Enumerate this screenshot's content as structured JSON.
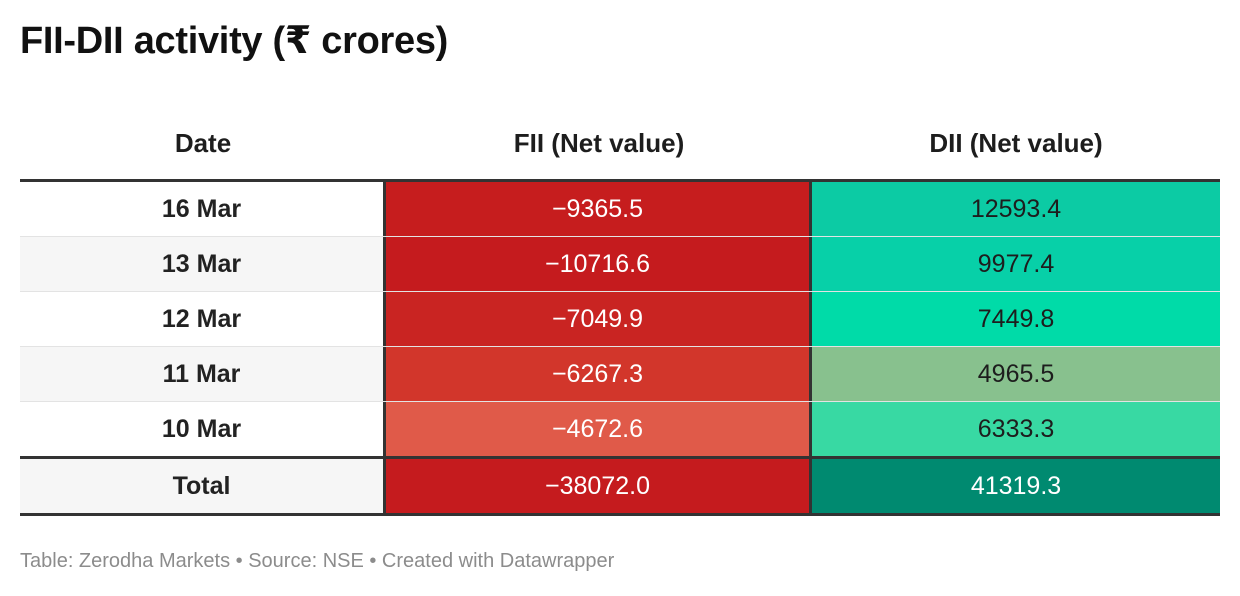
{
  "title": "FII-DII activity (₹ crores)",
  "chart_data": {
    "type": "table",
    "columns": [
      "Date",
      "FII (Net value)",
      "DII (Net value)"
    ],
    "rows": [
      {
        "date": "16 Mar",
        "fii": "−9365.5",
        "dii": "12593.4",
        "fii_color": "#c61d1e",
        "dii_color": "#0ccba4"
      },
      {
        "date": "13 Mar",
        "fii": "−10716.6",
        "dii": "9977.4",
        "fii_color": "#c51b1e",
        "dii_color": "#07d0a8"
      },
      {
        "date": "12 Mar",
        "fii": "−7049.9",
        "dii": "7449.8",
        "fii_color": "#c92422",
        "dii_color": "#00dba8"
      },
      {
        "date": "11 Mar",
        "fii": "−6267.3",
        "dii": "4965.5",
        "fii_color": "#d2362b",
        "dii_color": "#88c18e"
      },
      {
        "date": "10 Mar",
        "fii": "−4672.6",
        "dii": "6333.3",
        "fii_color": "#e05a49",
        "dii_color": "#38d9a3"
      }
    ],
    "total": {
      "label": "Total",
      "fii": "−38072.0",
      "dii": "41319.3",
      "fii_color": "#c51b1e",
      "dii_color": "#008a70"
    }
  },
  "footer": "Table: Zerodha Markets • Source: NSE • Created with Datawrapper"
}
